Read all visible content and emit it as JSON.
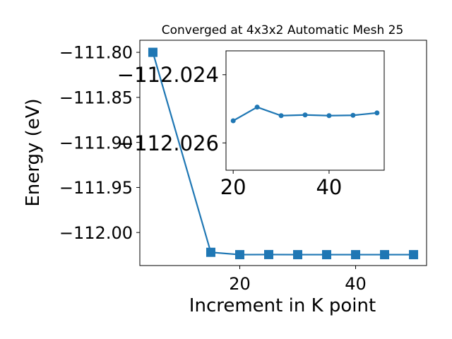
{
  "chart_data": [
    {
      "type": "line",
      "title": "Converged at 4x3x2 Automatic Mesh 25",
      "xlabel": "Increment in K point",
      "ylabel": "Energy (eV)",
      "xlim": [
        2.75,
        52.25
      ],
      "ylim": [
        -112.0367,
        -111.7866
      ],
      "xticks": [
        20,
        40
      ],
      "xtick_labels": [
        "20",
        "40"
      ],
      "yticks": [
        -111.8,
        -111.85,
        -111.9,
        -111.95,
        -112.0
      ],
      "ytick_labels": [
        "−111.80",
        "−111.85",
        "−111.90",
        "−111.95",
        "−112.00"
      ],
      "grid": false,
      "series": [
        {
          "marker": "square",
          "color": "#1f77b4",
          "x": [
            5,
            15,
            20,
            25,
            30,
            35,
            40,
            45,
            50
          ],
          "y": [
            -111.8,
            -112.022,
            -112.0246,
            -112.0245,
            -112.0246,
            -112.0246,
            -112.0246,
            -112.0246,
            -112.0246
          ]
        }
      ]
    },
    {
      "type": "line",
      "title": "",
      "xlabel": "",
      "ylabel": "",
      "xlim": [
        18.5,
        51.5
      ],
      "ylim": [
        -112.0268,
        -112.0233
      ],
      "xticks": [
        20,
        40
      ],
      "xtick_labels": [
        "20",
        "40"
      ],
      "yticks": [
        -112.026,
        -112.024
      ],
      "ytick_labels": [
        "−112.026",
        "−112.024"
      ],
      "grid": false,
      "series": [
        {
          "marker": "circle",
          "color": "#1f77b4",
          "x": [
            20,
            25,
            30,
            35,
            40,
            45,
            50
          ],
          "y": [
            -112.02535,
            -112.02495,
            -112.0252,
            -112.02518,
            -112.0252,
            -112.02519,
            -112.02512
          ]
        }
      ]
    }
  ]
}
